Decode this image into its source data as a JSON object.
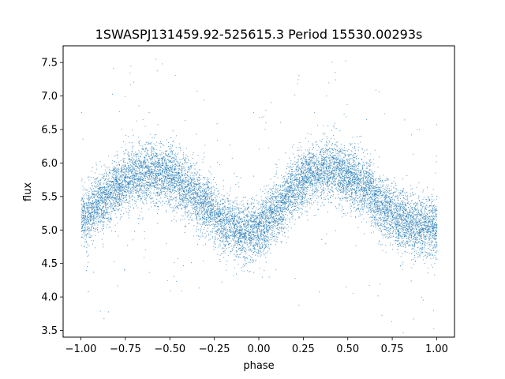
{
  "chart_data": {
    "type": "scatter",
    "title": "1SWASPJ131459.92-525615.3 Period 15530.00293s",
    "xlabel": "phase",
    "ylabel": "flux",
    "xlim": [
      -1.1,
      1.1
    ],
    "ylim": [
      3.4,
      7.75
    ],
    "xticks": [
      -1.0,
      -0.75,
      -0.5,
      -0.25,
      0.0,
      0.25,
      0.5,
      0.75,
      1.0
    ],
    "xtick_labels": [
      "−1.00",
      "−0.75",
      "−0.50",
      "−0.25",
      "0.00",
      "0.25",
      "0.50",
      "0.75",
      "1.00"
    ],
    "yticks": [
      3.5,
      4.0,
      4.5,
      5.0,
      5.5,
      6.0,
      6.5,
      7.0,
      7.5
    ],
    "ytick_labels": [
      "3.5",
      "4.0",
      "4.5",
      "5.0",
      "5.5",
      "6.0",
      "6.5",
      "7.0",
      "7.5"
    ],
    "grid": false,
    "marker_color": "#1f77b4",
    "series_trend": {
      "x": [
        -1.0,
        -0.9,
        -0.8,
        -0.7,
        -0.6,
        -0.5,
        -0.4,
        -0.3,
        -0.2,
        -0.1,
        0.0,
        0.1,
        0.2,
        0.3,
        0.4,
        0.5,
        0.6,
        0.7,
        0.8,
        0.9,
        1.0
      ],
      "y": [
        5.15,
        5.4,
        5.65,
        5.82,
        5.88,
        5.8,
        5.62,
        5.38,
        5.12,
        4.98,
        5.0,
        5.3,
        5.65,
        5.85,
        5.9,
        5.82,
        5.62,
        5.35,
        5.15,
        5.05,
        5.05
      ]
    },
    "scatter_spread": 0.22,
    "point_count": 12000
  }
}
